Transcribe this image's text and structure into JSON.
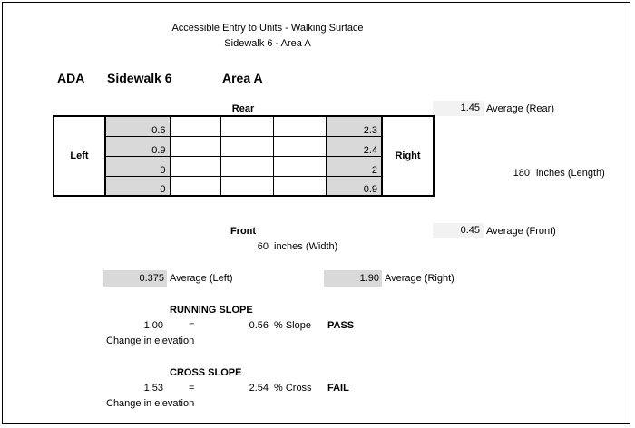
{
  "header": {
    "title": "Accessible Entry to Units - Walking Surface",
    "subtitle": "Sidewalk 6 - Area A"
  },
  "labels": {
    "ada": "ADA",
    "sidewalk": "Sidewalk 6",
    "area": "Area A"
  },
  "grid": {
    "rear_label": "Rear",
    "front_label": "Front",
    "left_label": "Left",
    "right_label": "Right",
    "left_values": [
      "0.6",
      "0.9",
      "0",
      "0"
    ],
    "right_values": [
      "2.3",
      "2.4",
      "2",
      "0.9"
    ]
  },
  "averages": {
    "rear_value": "1.45",
    "rear_label": "Average (Rear)",
    "front_value": "0.45",
    "front_label": "Average (Front)",
    "left_value": "0.375",
    "left_label": "Average (Left)",
    "right_value": "1.90",
    "right_label": "Average (Right)"
  },
  "dimensions": {
    "length_value": "180",
    "length_label": "inches (Length)",
    "width_value": "60",
    "width_label": "inches (Width)"
  },
  "running_slope": {
    "title": "RUNNING SLOPE",
    "elevation": "1.00",
    "equals": "=",
    "slope": "0.56",
    "slope_label": "% Slope",
    "result": "PASS",
    "caption": "Change in elevation"
  },
  "cross_slope": {
    "title": "CROSS SLOPE",
    "elevation": "1.53",
    "equals": "=",
    "slope": "2.54",
    "slope_label": "% Cross",
    "result": "FAIL",
    "caption": "Change in elevation"
  }
}
